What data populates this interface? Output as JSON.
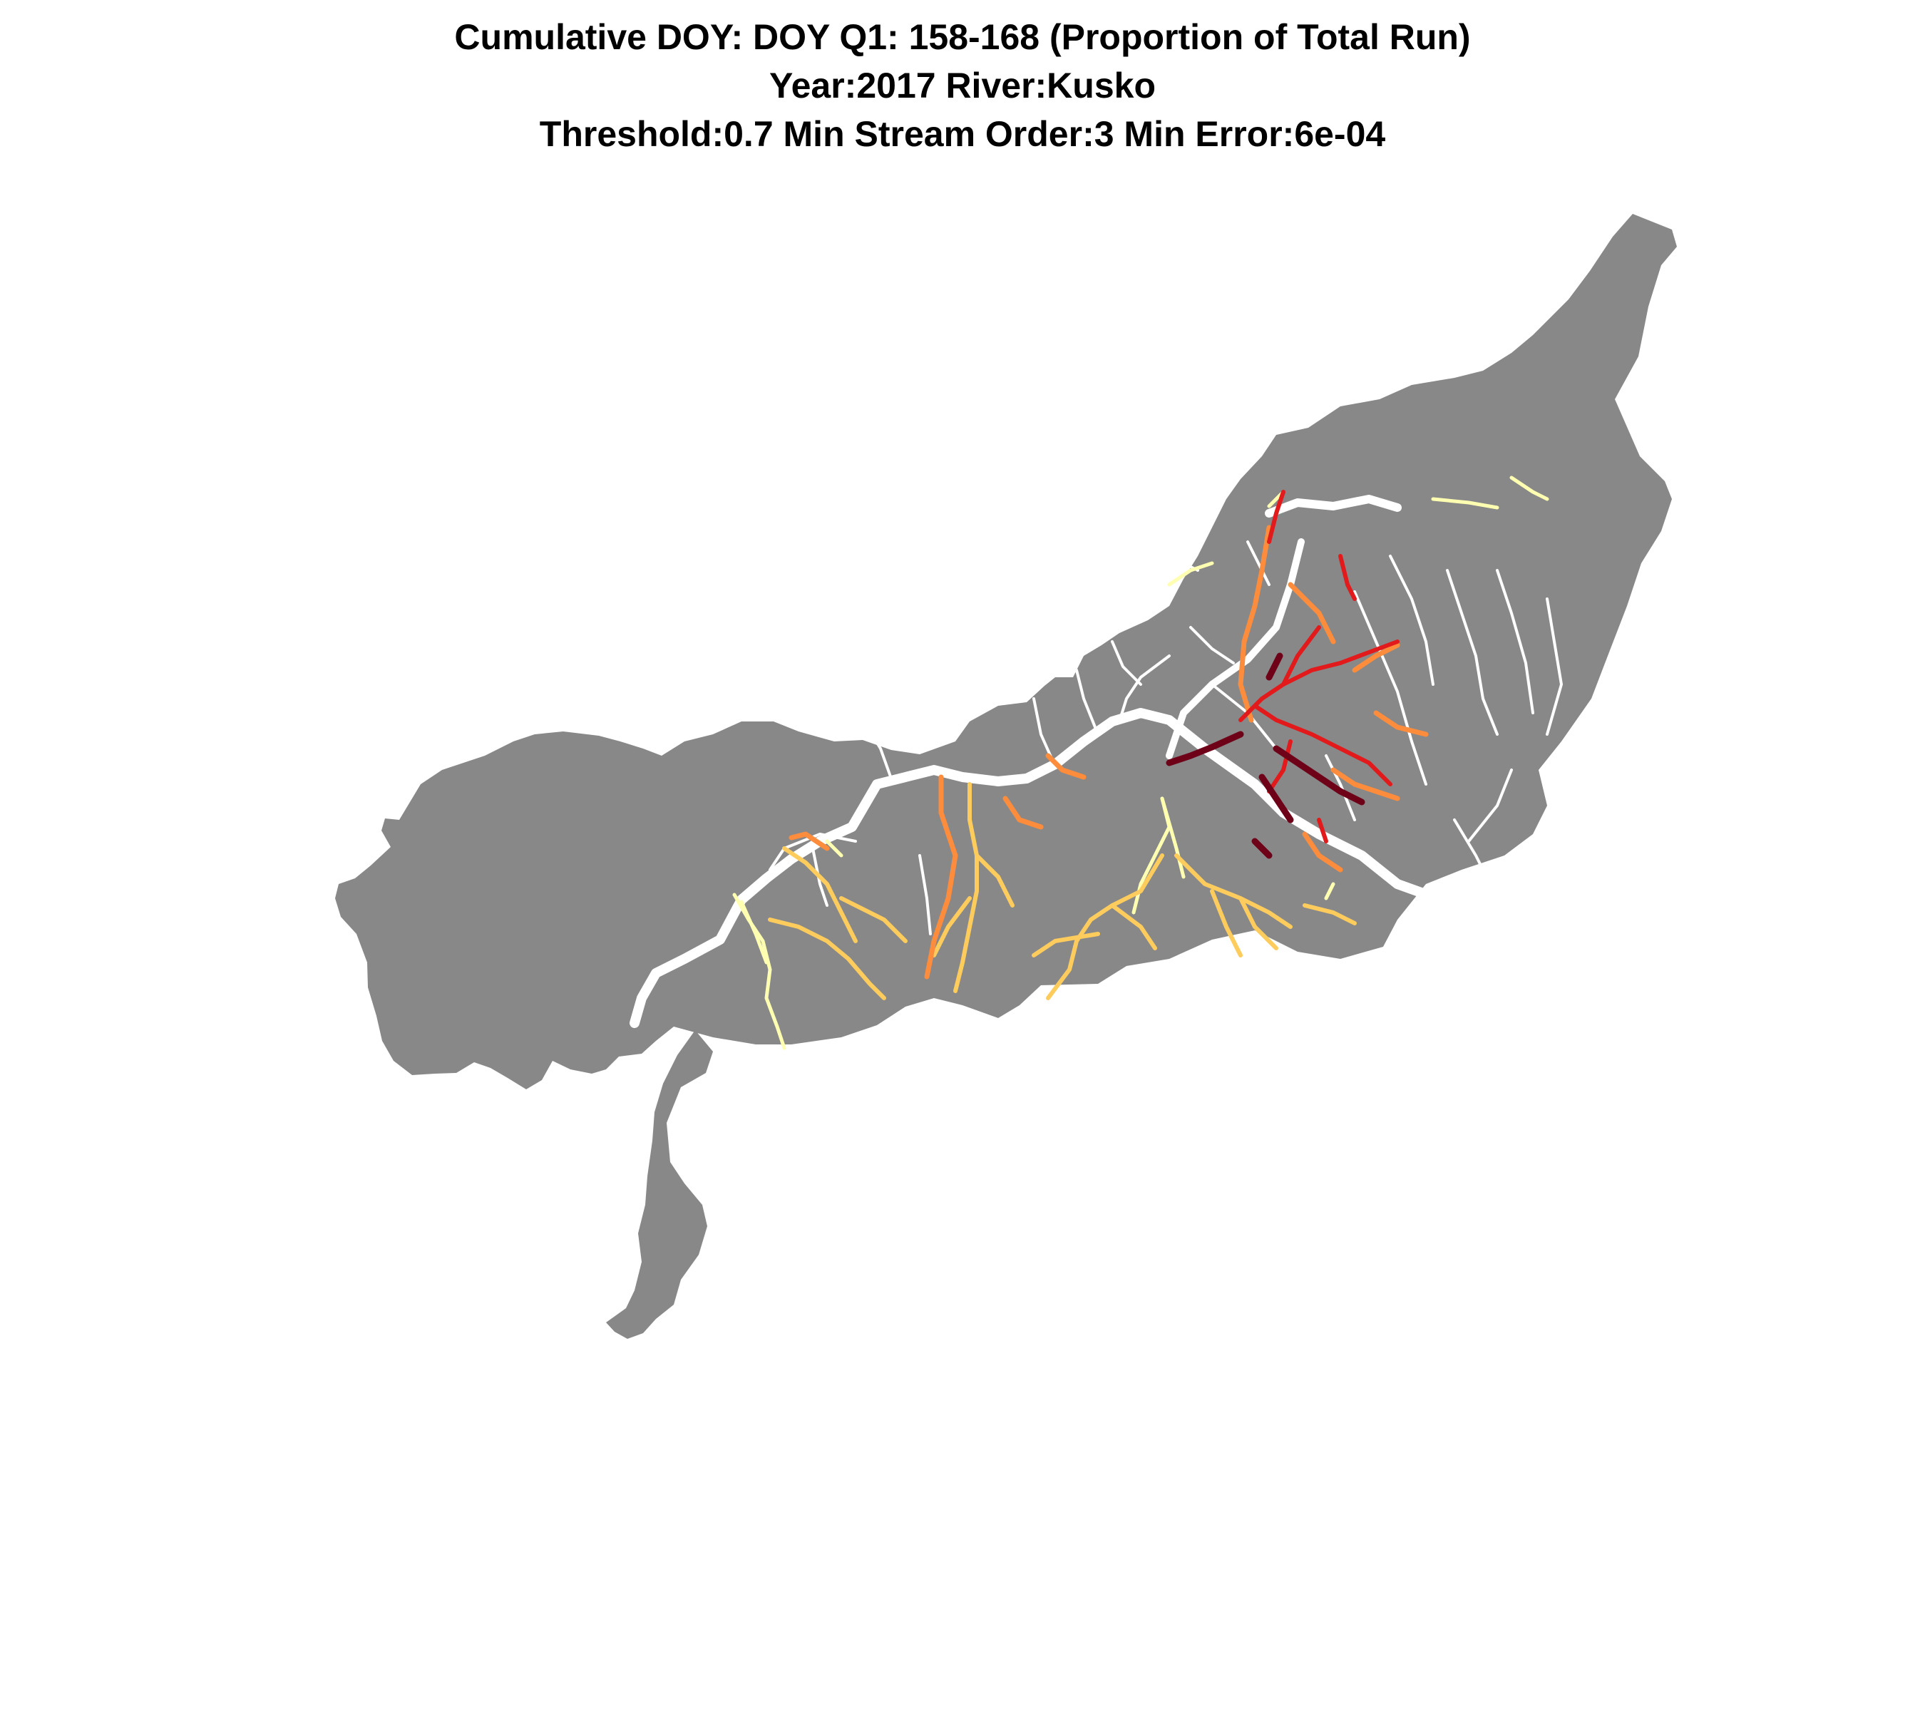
{
  "titles": {
    "line1": "Cumulative DOY: DOY Q1: 158-168 (Proportion of Total Run)",
    "line2": "Year:2017 River:Kusko",
    "line3": "Threshold:0.7 Min Stream Order:3 Min Error:6e-04"
  },
  "map": {
    "basin_color": "#888888",
    "background": "#ffffff",
    "stream_palette": {
      "lowest": "#ffffff",
      "very_low": "#ffffb2",
      "low": "#fecc5c",
      "mid": "#fd8d3c",
      "high": "#e31a1c",
      "highest": "#6e0018"
    },
    "legend": "none"
  }
}
